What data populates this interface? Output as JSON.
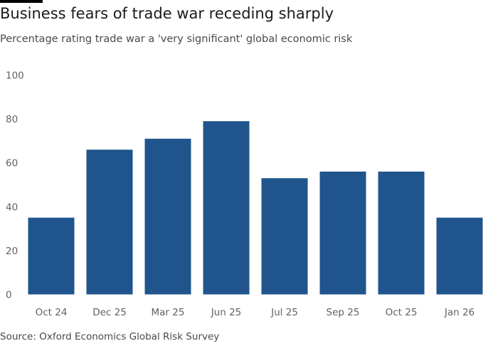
{
  "title": "Business fears of trade war receding sharply",
  "subtitle": "Percentage rating trade war a 'very significant' global economic risk",
  "source": "Source: Oxford Economics Global Risk Survey",
  "chart_data": {
    "type": "bar",
    "title": "Business fears of trade war receding sharply",
    "subtitle": "Percentage rating trade war a 'very significant' global economic risk",
    "categories": [
      "Oct 24",
      "Dec 25",
      "Mar 25",
      "Jun 25",
      "Jul 25",
      "Sep 25",
      "Oct 25",
      "Jan 26"
    ],
    "values": [
      35,
      66,
      71,
      79,
      53,
      56,
      56,
      35
    ],
    "xlabel": "",
    "ylabel": "",
    "ylim": [
      0,
      100
    ],
    "yticks": [
      "0",
      "20",
      "40",
      "60",
      "80",
      "100"
    ],
    "grid": false,
    "bar_color": "#1f558c"
  }
}
